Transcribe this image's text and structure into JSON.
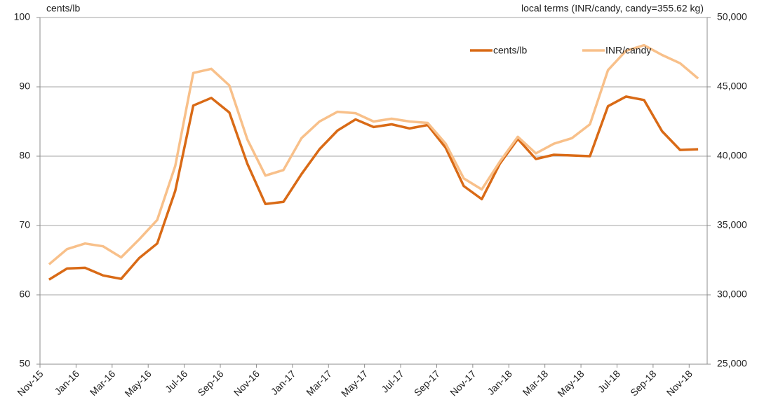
{
  "chart_data": {
    "type": "line",
    "y_label": "cents/lb",
    "y2_label": "local terms (INR/candy, candy=355.62 kg)",
    "categories": [
      "Nov-15",
      null,
      "Jan-16",
      null,
      "Mar-16",
      null,
      "May-16",
      null,
      "Jul-16",
      null,
      "Sep-16",
      null,
      "Nov-16",
      null,
      "Jan-17",
      null,
      "Mar-17",
      null,
      "May-17",
      null,
      "Jul-17",
      null,
      "Sep-17",
      null,
      "Nov-17",
      null,
      "Jan-18",
      null,
      "Mar-18",
      null,
      "May-18",
      null,
      "Jul-18",
      null,
      "Sep-18",
      null,
      "Nov-18"
    ],
    "series": [
      {
        "name": "cents/lb",
        "color": "#d96a16",
        "values": [
          62.2,
          63.8,
          63.9,
          62.8,
          62.3,
          65.3,
          67.4,
          75,
          87.3,
          88.4,
          86.3,
          78.9,
          73.1,
          73.4,
          77.4,
          81,
          83.7,
          85.3,
          84.2,
          84.6,
          84,
          84.5,
          81.2,
          75.7,
          73.8,
          78.9,
          82.5,
          79.6,
          80.2,
          80.1,
          80,
          87.2,
          88.6,
          88.1,
          83.6,
          80.9,
          81
        ]
      },
      {
        "name": "INR/candy",
        "color": "#f8c08a",
        "axis": "y2",
        "values": [
          32200,
          33300,
          33700,
          33500,
          32700,
          34000,
          35400,
          39300,
          46000,
          46300,
          45100,
          41200,
          38600,
          39000,
          41300,
          42500,
          43200,
          43100,
          42500,
          42700,
          42500,
          42400,
          40900,
          38400,
          37600,
          39600,
          41400,
          40200,
          40900,
          41300,
          42300,
          46200,
          47600,
          48000,
          47300,
          46700,
          45600
        ]
      }
    ],
    "ylim": [
      50,
      100
    ],
    "yticks": [
      50,
      60,
      70,
      80,
      90,
      100
    ],
    "y2lim": [
      25000,
      50000
    ],
    "y2ticks": [
      {
        "value": 25000,
        "label": "25,000"
      },
      {
        "value": 30000,
        "label": "30,000"
      },
      {
        "value": 35000,
        "label": "35,000"
      },
      {
        "value": 40000,
        "label": "40,000"
      },
      {
        "value": 45000,
        "label": "45,000"
      },
      {
        "value": 50000,
        "label": "50,000"
      }
    ],
    "grid": true,
    "legend": "upper right"
  }
}
